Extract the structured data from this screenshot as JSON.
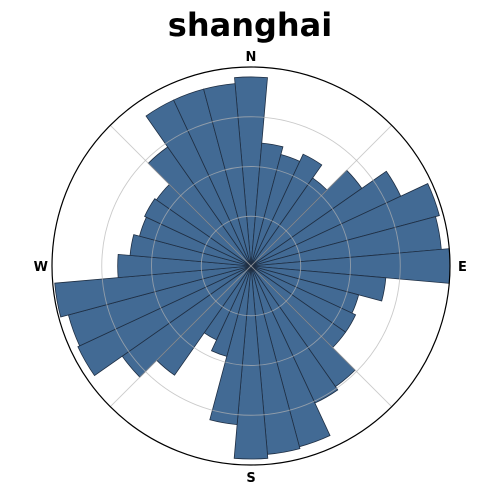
{
  "chart_data": {
    "type": "polar-bar",
    "title": "shanghai",
    "direction_labels": {
      "north": "N",
      "east": "E",
      "south": "S",
      "west": "W"
    },
    "bar_color": "#426a94",
    "edge_color": "#1f2f44",
    "grid_color": "#b3b3b3",
    "r_max": 1.0,
    "r_grid": [
      0.25,
      0.5,
      0.75
    ],
    "angle_grid_deg": [
      45,
      135,
      225,
      315
    ],
    "bins": 36,
    "bin_centers_deg": [
      0,
      10,
      20,
      30,
      40,
      50,
      60,
      70,
      80,
      90,
      100,
      110,
      120,
      130,
      140,
      150,
      160,
      170,
      180,
      190,
      200,
      210,
      220,
      230,
      240,
      250,
      260,
      270,
      280,
      290,
      300,
      310,
      320,
      330,
      340,
      350
    ],
    "values": [
      0.95,
      0.62,
      0.58,
      0.62,
      0.54,
      0.68,
      0.83,
      0.98,
      0.96,
      1.0,
      0.68,
      0.56,
      0.58,
      0.58,
      0.74,
      0.76,
      0.94,
      0.95,
      0.97,
      0.8,
      0.47,
      0.41,
      0.67,
      0.79,
      0.96,
      0.95,
      0.99,
      0.67,
      0.61,
      0.58,
      0.59,
      0.58,
      0.73,
      0.92,
      0.92,
      0.92
    ]
  }
}
